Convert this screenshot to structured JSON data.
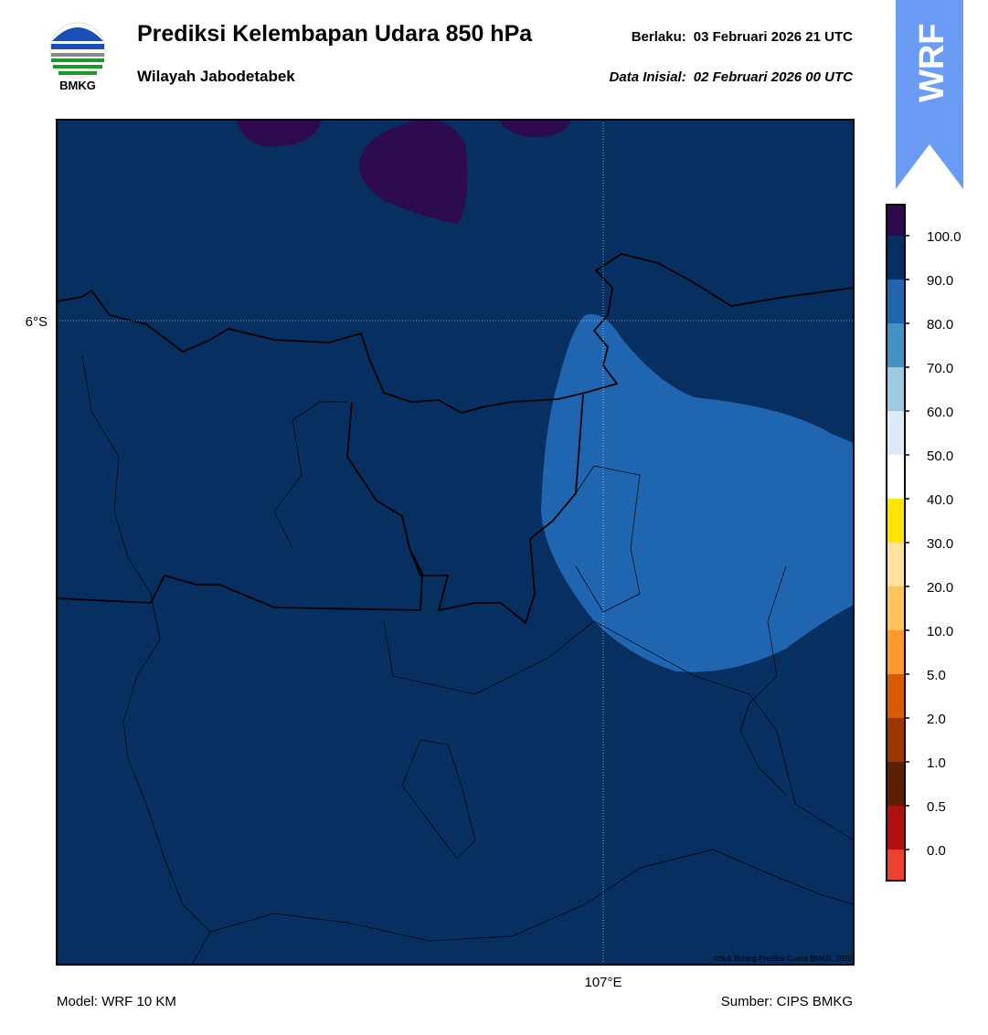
{
  "header": {
    "title": "Prediksi Kelembapan Udara 850 hPa",
    "subtitle": "Wilayah Jabodetabek",
    "valid_label": "Berlaku:",
    "valid_time": "03 Februari 2026 21 UTC",
    "init_label": "Data Inisial:",
    "init_time": "02 Februari 2026 00 UTC",
    "logo_text": "BMKG",
    "badge": "WRF"
  },
  "map": {
    "lat_label": "6°S",
    "lon_label": "107°E",
    "credit": "©Sub Bidang Prediksi Cuaca BMKG, 2020"
  },
  "colorbar": {
    "labels": [
      "100.0",
      "90.0",
      "80.0",
      "70.0",
      "60.0",
      "50.0",
      "40.0",
      "30.0",
      "20.0",
      "10.0",
      "5.0",
      "2.0",
      "1.0",
      "0.5",
      "0.0"
    ],
    "colors": [
      "#2e0a4e",
      "#072f60",
      "#2065b0",
      "#4292c6",
      "#9ecae1",
      "#deebf7",
      "#ffffff",
      "#ffe600",
      "#ffe2a0",
      "#ffc45c",
      "#ff9a2e",
      "#d95a00",
      "#9a3800",
      "#5a2000",
      "#b01010",
      "#ee4030"
    ]
  },
  "footer": {
    "model": "Model: WRF 10 KM",
    "source": "Sumber: CIPS BMKG"
  }
}
